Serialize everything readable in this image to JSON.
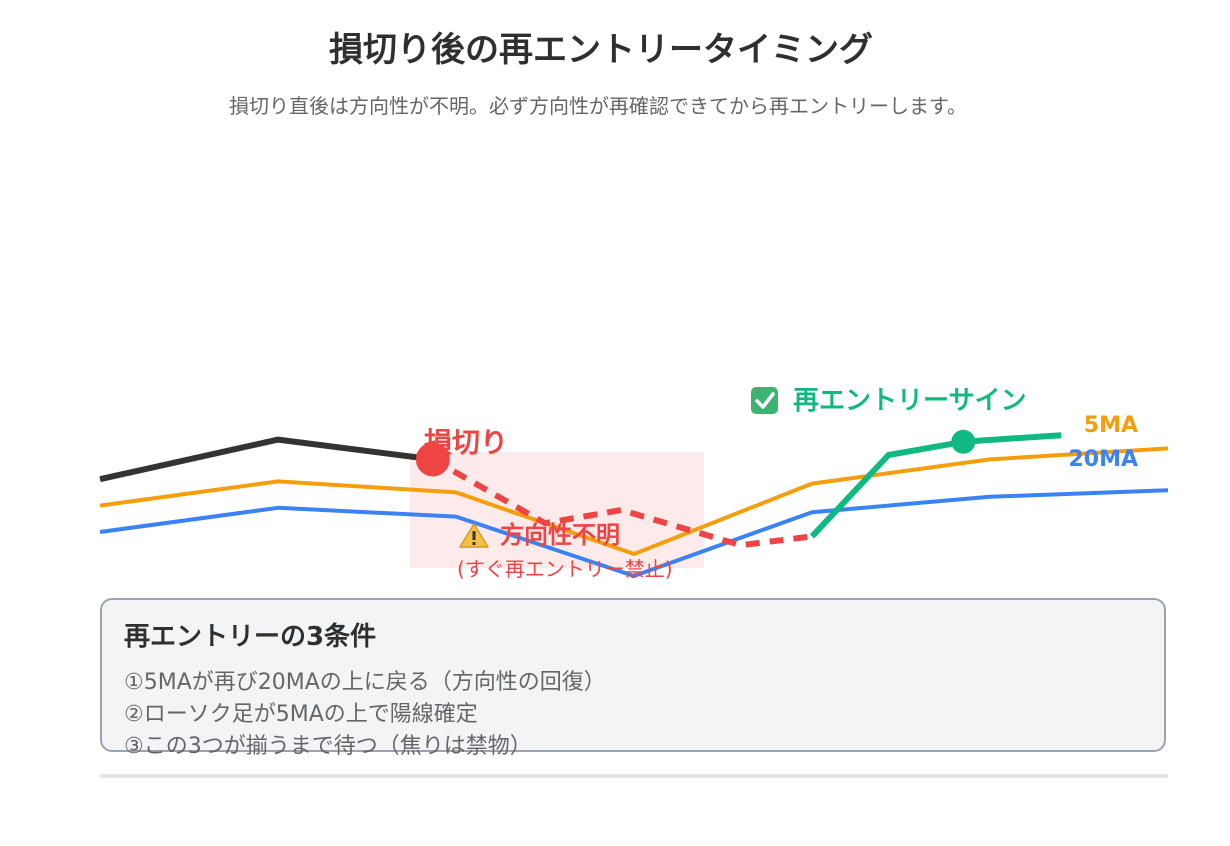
{
  "title": "損切り後の再エントリータイミング",
  "subtitle": "損切り直後は方向性が不明。必ず方向性が再確認できてから再エントリーします。",
  "chart_data": {
    "type": "line",
    "x": [
      0,
      1,
      2,
      3,
      4,
      5,
      6
    ],
    "series": [
      {
        "name": "5MA",
        "color": "#f59e0b",
        "values": [
          52,
          63,
          58,
          30,
          62,
          73,
          78
        ]
      },
      {
        "name": "20MA",
        "color": "#3b82f6",
        "values": [
          40,
          51,
          47,
          20,
          49,
          56,
          59
        ]
      }
    ],
    "price": {
      "color": "#333333",
      "before_stop": [
        [
          0,
          64
        ],
        [
          1,
          82
        ],
        [
          1.87,
          73
        ]
      ],
      "unclear": [
        [
          1.87,
          73
        ],
        [
          2.5,
          44
        ],
        [
          2.93,
          50
        ],
        [
          3.6,
          34
        ],
        [
          4.0,
          38
        ]
      ],
      "after_reentry": [
        [
          4.0,
          38
        ],
        [
          4.43,
          75
        ],
        [
          4.85,
          81
        ],
        [
          5.4,
          84
        ]
      ]
    },
    "annotations": {
      "stop_loss": {
        "label": "損切り",
        "color": "#ef4444"
      },
      "unclear_label": "方向性不明",
      "unclear_sub": "(すぐ再エントリー禁止)",
      "unclear_icon": "warning-icon",
      "reentry": {
        "label": "再エントリーサイン",
        "color": "#10b981",
        "icon": "check-box-icon"
      }
    }
  },
  "conditions": {
    "title": "再エントリーの3条件",
    "items": [
      "①5MAが再び20MAの上に戻る（方向性の回復）",
      "②ローソク足が5MAの上で陽線確定",
      "③この3つが揃うまで待つ（焦りは禁物）"
    ]
  }
}
